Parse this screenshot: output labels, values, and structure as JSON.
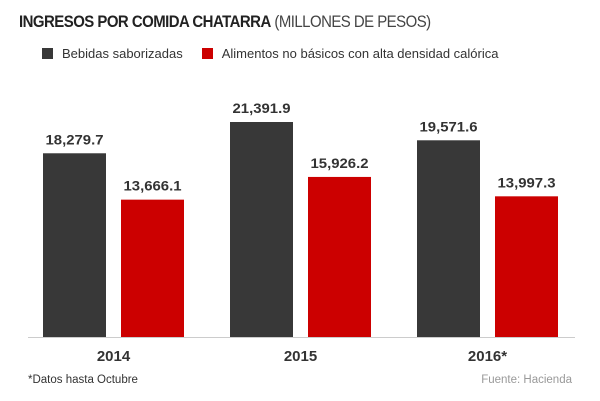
{
  "chart_data": {
    "type": "bar",
    "title": "INGRESOS POR COMIDA CHATARRA",
    "subtitle": "(MILLONES DE PESOS)",
    "categories": [
      "2014",
      "2015",
      "2016*"
    ],
    "series": [
      {
        "name": "Bebidas saborizadas",
        "color": "#383838",
        "values": [
          18279.7,
          21391.9,
          19571.6
        ],
        "labels": [
          "18,279.7",
          "21,391.9",
          "19,571.6"
        ]
      },
      {
        "name": "Alimentos no básicos con alta densidad calórica",
        "color": "#cc0000",
        "values": [
          13666.1,
          15926.2,
          13997.3
        ],
        "labels": [
          "13,666.1",
          "15,926.2",
          "13,997.3"
        ]
      }
    ],
    "legend": "top-left",
    "grid": false,
    "note": "*Datos hasta Octubre",
    "source": "Fuente: Hacienda"
  }
}
